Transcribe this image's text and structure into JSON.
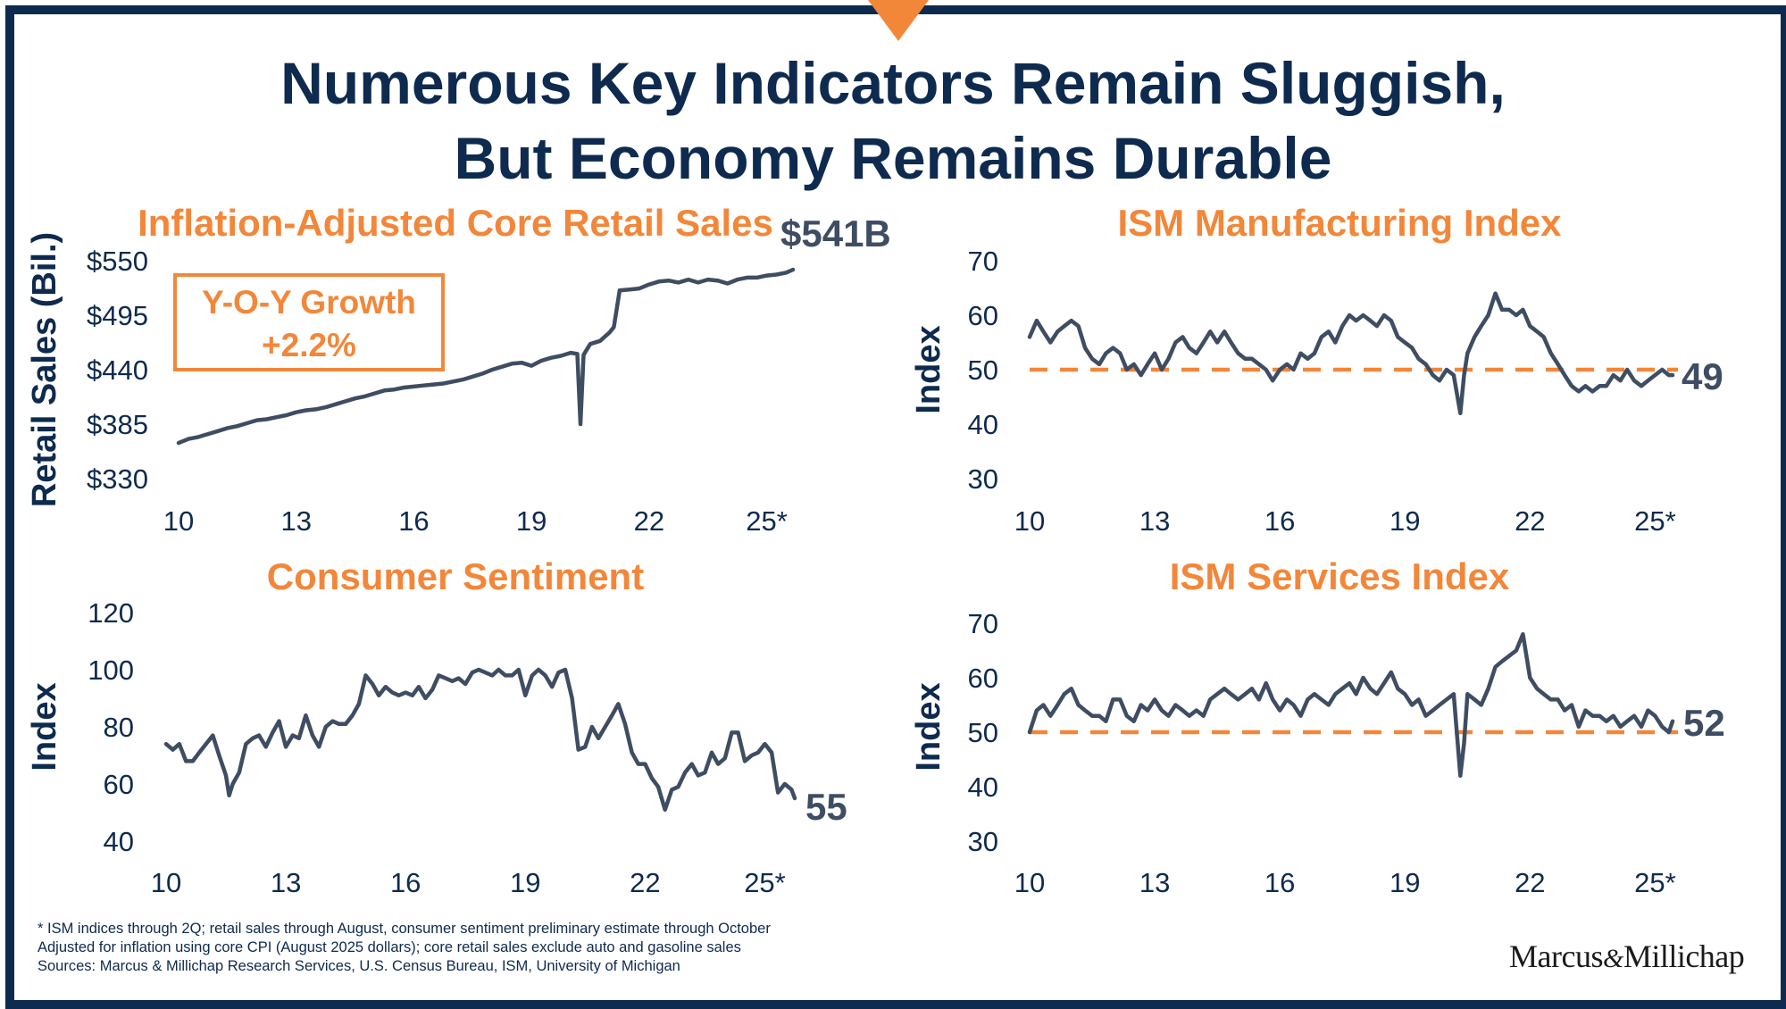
{
  "title_line1": "Numerous Key Indicators Remain Sluggish,",
  "title_line2": "But Economy Remains Durable",
  "yoy_box": {
    "line1": "Y-O-Y Growth",
    "line2": "+2.2%"
  },
  "footnotes": [
    "* ISM indices through 2Q; retail sales through August, consumer sentiment preliminary estimate through October",
    "Adjusted for inflation using core CPI (August 2025 dollars); core retail sales exclude auto and gasoline sales",
    "Sources: Marcus & Millichap Research Services, U.S. Census Bureau, ISM, University of Michigan"
  ],
  "logo": {
    "left": "Marcus",
    "amp": "&",
    "right": "Millichap"
  },
  "colors": {
    "navy": "#0e2a4e",
    "orange": "#f2873a",
    "series": "#3f4d63"
  },
  "chart_data": [
    {
      "id": "retail",
      "type": "line",
      "title": "Inflation-Adjusted Core Retail Sales",
      "ylabel": "Retail Sales (Bil.)",
      "xlabel": "",
      "end_label": "$541B",
      "xlim": [
        2010,
        2025.67
      ],
      "ylim": [
        330,
        550
      ],
      "x_ticks": [
        {
          "v": 2010,
          "label": "10"
        },
        {
          "v": 2013,
          "label": "13"
        },
        {
          "v": 2016,
          "label": "16"
        },
        {
          "v": 2019,
          "label": "19"
        },
        {
          "v": 2022,
          "label": "22"
        },
        {
          "v": 2025,
          "label": "25*"
        }
      ],
      "y_ticks": [
        {
          "v": 550,
          "label": "$550"
        },
        {
          "v": 495,
          "label": "$495"
        },
        {
          "v": 440,
          "label": "$440"
        },
        {
          "v": 385,
          "label": "$385"
        },
        {
          "v": 330,
          "label": "$330"
        }
      ],
      "grid": false,
      "series": [
        {
          "x": [
            2010.0,
            2010.25,
            2010.5,
            2010.75,
            2011.0,
            2011.25,
            2011.5,
            2011.75,
            2012.0,
            2012.25,
            2012.5,
            2012.75,
            2013.0,
            2013.25,
            2013.5,
            2013.75,
            2014.0,
            2014.25,
            2014.5,
            2014.75,
            2015.0,
            2015.25,
            2015.5,
            2015.75,
            2016.0,
            2016.25,
            2016.5,
            2016.75,
            2017.0,
            2017.25,
            2017.5,
            2017.75,
            2018.0,
            2018.25,
            2018.5,
            2018.75,
            2019.0,
            2019.25,
            2019.5,
            2019.75,
            2020.0,
            2020.17,
            2020.25,
            2020.33,
            2020.5,
            2020.75,
            2021.0,
            2021.1,
            2021.25,
            2021.5,
            2021.75,
            2022.0,
            2022.25,
            2022.5,
            2022.75,
            2023.0,
            2023.25,
            2023.5,
            2023.75,
            2024.0,
            2024.25,
            2024.5,
            2024.75,
            2025.0,
            2025.25,
            2025.5,
            2025.67
          ],
          "values": [
            366,
            370,
            372,
            375,
            378,
            381,
            383,
            386,
            389,
            390,
            392,
            394,
            397,
            399,
            400,
            402,
            405,
            408,
            411,
            413,
            416,
            419,
            420,
            422,
            423,
            424,
            425,
            426,
            428,
            430,
            433,
            436,
            440,
            443,
            446,
            447,
            444,
            449,
            452,
            454,
            457,
            456,
            385,
            455,
            466,
            469,
            478,
            483,
            520,
            521,
            522,
            526,
            529,
            530,
            528,
            531,
            528,
            531,
            530,
            527,
            531,
            533,
            533,
            535,
            536,
            538,
            541
          ]
        }
      ]
    },
    {
      "id": "ism_mfg",
      "type": "line",
      "title": "ISM Manufacturing Index",
      "ylabel": "Index",
      "xlabel": "",
      "end_label": "49",
      "reference_line": 50,
      "xlim": [
        2010,
        2025.42
      ],
      "ylim": [
        30,
        70
      ],
      "x_ticks": [
        {
          "v": 2010,
          "label": "10"
        },
        {
          "v": 2013,
          "label": "13"
        },
        {
          "v": 2016,
          "label": "16"
        },
        {
          "v": 2019,
          "label": "19"
        },
        {
          "v": 2022,
          "label": "22"
        },
        {
          "v": 2025,
          "label": "25*"
        }
      ],
      "y_ticks": [
        {
          "v": 70,
          "label": "70"
        },
        {
          "v": 60,
          "label": "60"
        },
        {
          "v": 50,
          "label": "50"
        },
        {
          "v": 40,
          "label": "40"
        },
        {
          "v": 30,
          "label": "30"
        }
      ],
      "grid": false,
      "series": [
        {
          "x": [
            2010.0,
            2010.17,
            2010.33,
            2010.5,
            2010.67,
            2010.83,
            2011.0,
            2011.17,
            2011.33,
            2011.5,
            2011.67,
            2011.83,
            2012.0,
            2012.17,
            2012.33,
            2012.5,
            2012.67,
            2012.83,
            2013.0,
            2013.17,
            2013.33,
            2013.5,
            2013.67,
            2013.83,
            2014.0,
            2014.17,
            2014.33,
            2014.5,
            2014.67,
            2014.83,
            2015.0,
            2015.17,
            2015.33,
            2015.5,
            2015.67,
            2015.83,
            2016.0,
            2016.17,
            2016.33,
            2016.5,
            2016.67,
            2016.83,
            2017.0,
            2017.17,
            2017.33,
            2017.5,
            2017.67,
            2017.83,
            2018.0,
            2018.17,
            2018.33,
            2018.5,
            2018.67,
            2018.83,
            2019.0,
            2019.17,
            2019.33,
            2019.5,
            2019.67,
            2019.83,
            2020.0,
            2020.17,
            2020.33,
            2020.42,
            2020.5,
            2020.67,
            2020.83,
            2021.0,
            2021.17,
            2021.33,
            2021.5,
            2021.67,
            2021.83,
            2022.0,
            2022.17,
            2022.33,
            2022.5,
            2022.67,
            2022.83,
            2023.0,
            2023.17,
            2023.33,
            2023.5,
            2023.67,
            2023.83,
            2024.0,
            2024.17,
            2024.33,
            2024.5,
            2024.67,
            2024.83,
            2025.0,
            2025.17,
            2025.33,
            2025.42
          ],
          "values": [
            56,
            59,
            57,
            55,
            57,
            58,
            59,
            58,
            54,
            52,
            51,
            53,
            54,
            53,
            50,
            51,
            49,
            51,
            53,
            50,
            52,
            55,
            56,
            54,
            53,
            55,
            57,
            55,
            57,
            55,
            53,
            52,
            52,
            51,
            50,
            48,
            50,
            51,
            50,
            53,
            52,
            53,
            56,
            57,
            55,
            58,
            60,
            59,
            60,
            59,
            58,
            60,
            59,
            56,
            55,
            54,
            52,
            51,
            49,
            48,
            50,
            49,
            42,
            49,
            53,
            56,
            58,
            60,
            64,
            61,
            61,
            60,
            61,
            58,
            57,
            56,
            53,
            51,
            49,
            47,
            46,
            47,
            46,
            47,
            47,
            49,
            48,
            50,
            48,
            47,
            48,
            49,
            50,
            49,
            49
          ]
        }
      ]
    },
    {
      "id": "sentiment",
      "type": "line",
      "title": "Consumer Sentiment",
      "ylabel": "Index",
      "xlabel": "",
      "end_label": "55",
      "xlim": [
        2010,
        2025.75
      ],
      "ylim": [
        40,
        120
      ],
      "x_ticks": [
        {
          "v": 2010,
          "label": "10"
        },
        {
          "v": 2013,
          "label": "13"
        },
        {
          "v": 2016,
          "label": "16"
        },
        {
          "v": 2019,
          "label": "19"
        },
        {
          "v": 2022,
          "label": "22"
        },
        {
          "v": 2025,
          "label": "25*"
        }
      ],
      "y_ticks": [
        {
          "v": 120,
          "label": "120"
        },
        {
          "v": 100,
          "label": "100"
        },
        {
          "v": 80,
          "label": "80"
        },
        {
          "v": 60,
          "label": "60"
        },
        {
          "v": 40,
          "label": "40"
        }
      ],
      "grid": false,
      "series": [
        {
          "x": [
            2010.0,
            2010.17,
            2010.33,
            2010.5,
            2010.67,
            2010.83,
            2011.0,
            2011.17,
            2011.33,
            2011.5,
            2011.58,
            2011.67,
            2011.83,
            2012.0,
            2012.17,
            2012.33,
            2012.5,
            2012.67,
            2012.83,
            2013.0,
            2013.17,
            2013.33,
            2013.5,
            2013.67,
            2013.83,
            2014.0,
            2014.17,
            2014.33,
            2014.5,
            2014.67,
            2014.83,
            2015.0,
            2015.17,
            2015.33,
            2015.5,
            2015.67,
            2015.83,
            2016.0,
            2016.17,
            2016.33,
            2016.5,
            2016.67,
            2016.83,
            2017.0,
            2017.17,
            2017.33,
            2017.5,
            2017.67,
            2017.83,
            2018.0,
            2018.17,
            2018.33,
            2018.5,
            2018.67,
            2018.83,
            2019.0,
            2019.17,
            2019.33,
            2019.5,
            2019.67,
            2019.83,
            2020.0,
            2020.17,
            2020.33,
            2020.5,
            2020.67,
            2020.83,
            2021.0,
            2021.17,
            2021.33,
            2021.5,
            2021.67,
            2021.83,
            2022.0,
            2022.17,
            2022.33,
            2022.5,
            2022.67,
            2022.83,
            2023.0,
            2023.17,
            2023.33,
            2023.5,
            2023.67,
            2023.83,
            2024.0,
            2024.17,
            2024.33,
            2024.5,
            2024.67,
            2024.83,
            2025.0,
            2025.17,
            2025.33,
            2025.5,
            2025.67,
            2025.75
          ],
          "values": [
            74,
            72,
            74,
            68,
            68,
            71,
            74,
            77,
            70,
            63,
            56,
            60,
            64,
            74,
            76,
            77,
            73,
            78,
            82,
            73,
            77,
            76,
            84,
            77,
            73,
            80,
            82,
            81,
            81,
            84,
            88,
            98,
            95,
            91,
            94,
            92,
            91,
            92,
            91,
            94,
            90,
            93,
            98,
            97,
            96,
            97,
            95,
            99,
            100,
            99,
            98,
            100,
            98,
            98,
            100,
            91,
            98,
            100,
            98,
            94,
            99,
            100,
            90,
            72,
            73,
            80,
            76,
            80,
            84,
            88,
            81,
            71,
            67,
            67,
            62,
            59,
            51,
            58,
            59,
            64,
            67,
            63,
            64,
            71,
            67,
            69,
            78,
            78,
            68,
            70,
            71,
            74,
            71,
            57,
            60,
            58,
            55
          ]
        }
      ]
    },
    {
      "id": "ism_svc",
      "type": "line",
      "title": "ISM Services Index",
      "ylabel": "Index",
      "xlabel": "",
      "end_label": "52",
      "reference_line": 50,
      "xlim": [
        2010,
        2025.42
      ],
      "ylim": [
        30,
        70
      ],
      "x_ticks": [
        {
          "v": 2010,
          "label": "10"
        },
        {
          "v": 2013,
          "label": "13"
        },
        {
          "v": 2016,
          "label": "16"
        },
        {
          "v": 2019,
          "label": "19"
        },
        {
          "v": 2022,
          "label": "22"
        },
        {
          "v": 2025,
          "label": "25*"
        }
      ],
      "y_ticks": [
        {
          "v": 70,
          "label": "70"
        },
        {
          "v": 60,
          "label": "60"
        },
        {
          "v": 50,
          "label": "50"
        },
        {
          "v": 40,
          "label": "40"
        },
        {
          "v": 30,
          "label": "30"
        }
      ],
      "grid": false,
      "series": [
        {
          "x": [
            2010.0,
            2010.17,
            2010.33,
            2010.5,
            2010.67,
            2010.83,
            2011.0,
            2011.17,
            2011.33,
            2011.5,
            2011.67,
            2011.83,
            2012.0,
            2012.17,
            2012.33,
            2012.5,
            2012.67,
            2012.83,
            2013.0,
            2013.17,
            2013.33,
            2013.5,
            2013.67,
            2013.83,
            2014.0,
            2014.17,
            2014.33,
            2014.5,
            2014.67,
            2014.83,
            2015.0,
            2015.17,
            2015.33,
            2015.5,
            2015.67,
            2015.83,
            2016.0,
            2016.17,
            2016.33,
            2016.5,
            2016.67,
            2016.83,
            2017.0,
            2017.17,
            2017.33,
            2017.5,
            2017.67,
            2017.83,
            2018.0,
            2018.17,
            2018.33,
            2018.5,
            2018.67,
            2018.83,
            2019.0,
            2019.17,
            2019.33,
            2019.5,
            2019.67,
            2019.83,
            2020.0,
            2020.17,
            2020.33,
            2020.42,
            2020.5,
            2020.67,
            2020.83,
            2021.0,
            2021.17,
            2021.33,
            2021.5,
            2021.67,
            2021.83,
            2022.0,
            2022.17,
            2022.33,
            2022.5,
            2022.67,
            2022.83,
            2023.0,
            2023.17,
            2023.33,
            2023.5,
            2023.67,
            2023.83,
            2024.0,
            2024.17,
            2024.33,
            2024.5,
            2024.67,
            2024.83,
            2025.0,
            2025.17,
            2025.33,
            2025.42
          ],
          "values": [
            50,
            54,
            55,
            53,
            55,
            57,
            58,
            55,
            54,
            53,
            53,
            52,
            56,
            56,
            53,
            52,
            55,
            54,
            56,
            54,
            53,
            55,
            54,
            53,
            54,
            53,
            56,
            57,
            58,
            57,
            56,
            57,
            58,
            56,
            59,
            56,
            54,
            56,
            55,
            53,
            56,
            57,
            56,
            55,
            57,
            58,
            59,
            57,
            60,
            58,
            57,
            59,
            61,
            58,
            57,
            55,
            56,
            53,
            54,
            55,
            56,
            57,
            42,
            48,
            57,
            56,
            55,
            58,
            62,
            63,
            64,
            65,
            68,
            60,
            58,
            57,
            56,
            56,
            54,
            55,
            51,
            54,
            53,
            53,
            52,
            53,
            51,
            52,
            53,
            51,
            54,
            53,
            51,
            50,
            52
          ]
        }
      ]
    }
  ]
}
